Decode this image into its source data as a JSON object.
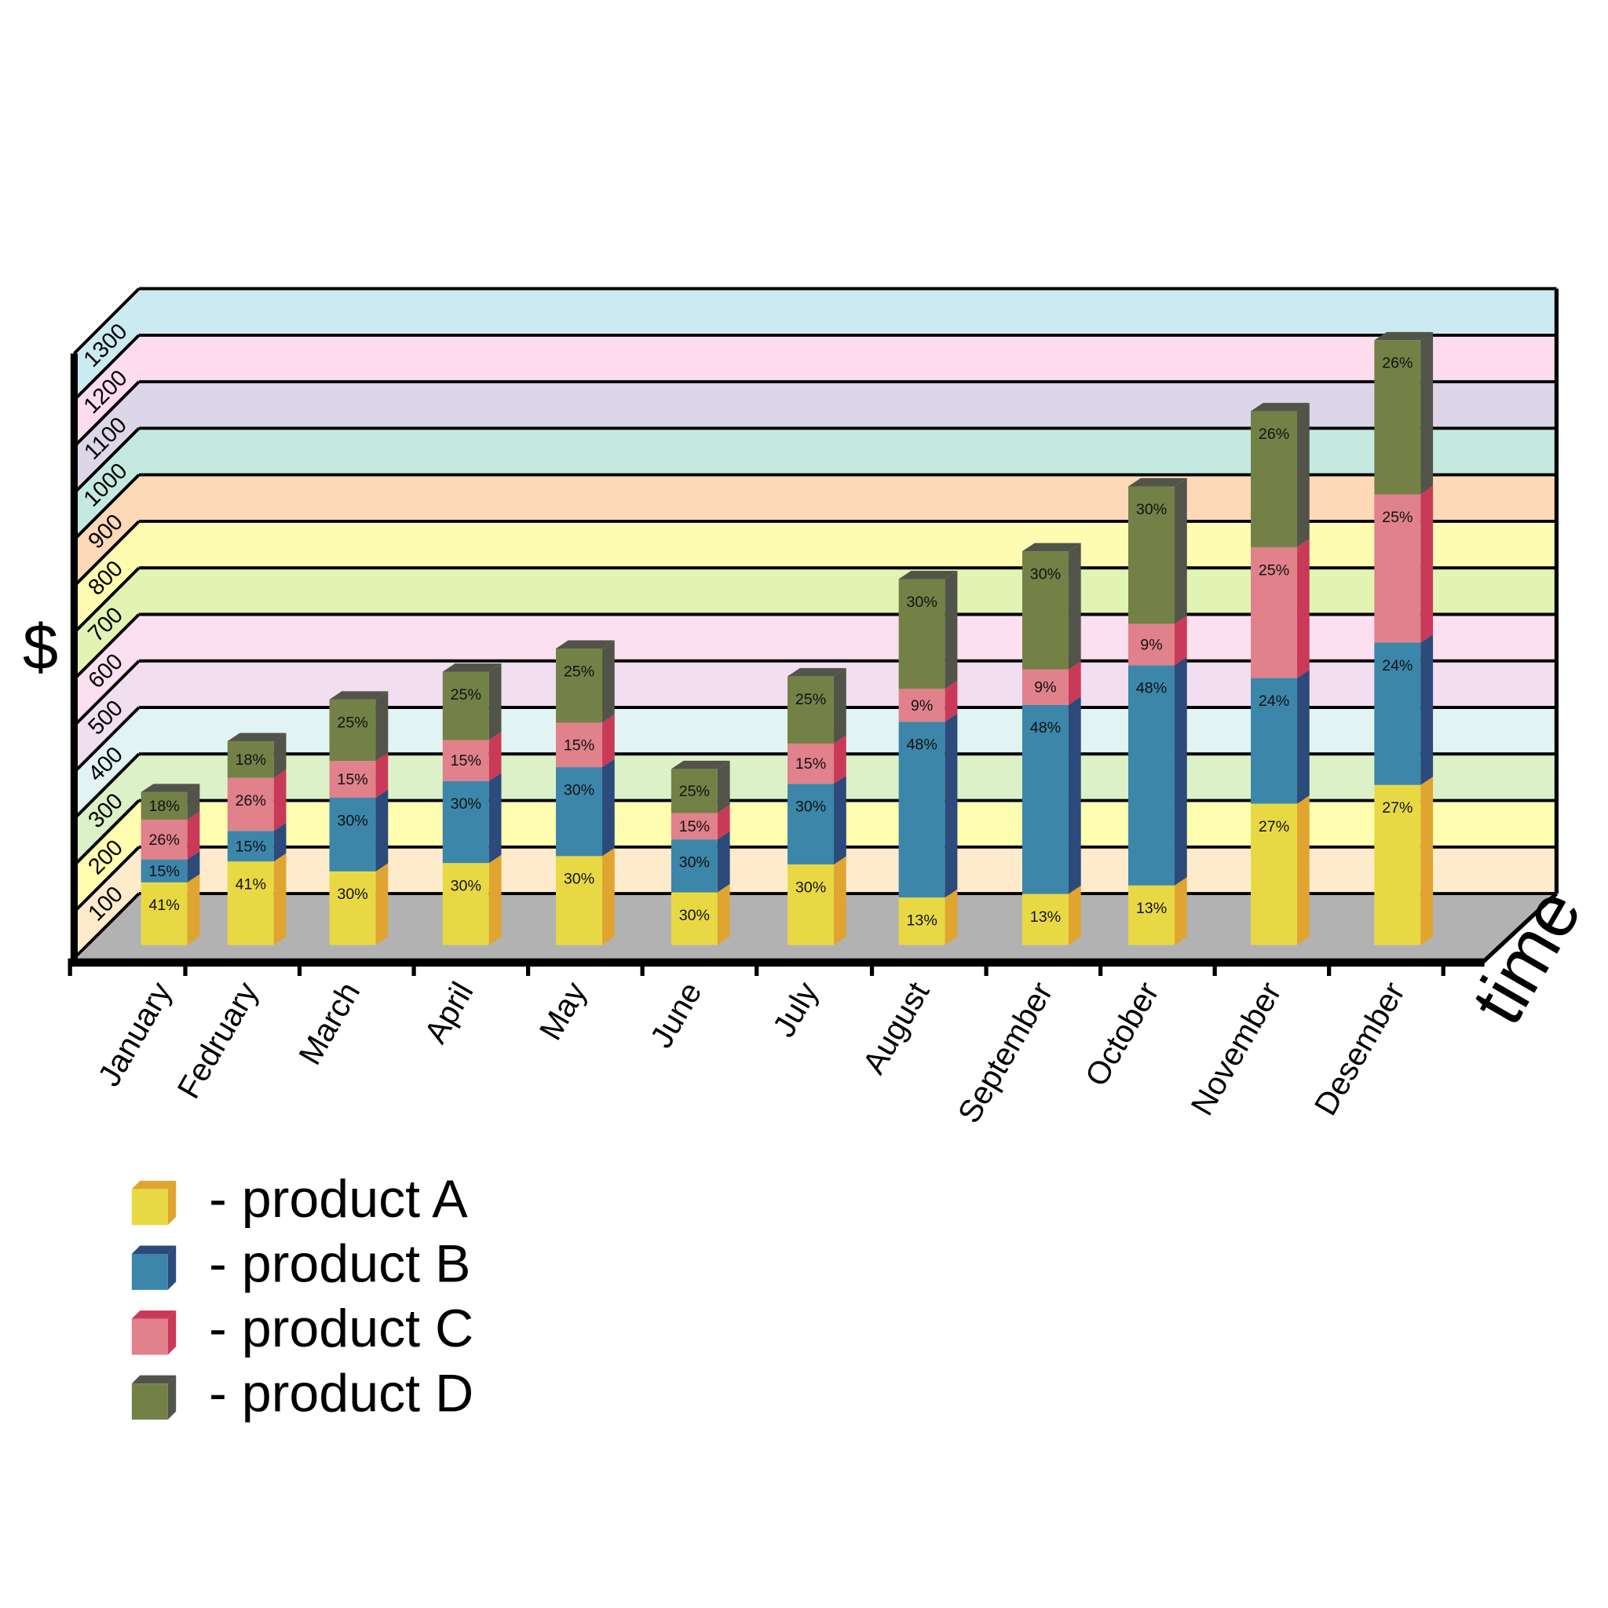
{
  "chart_data": {
    "type": "bar",
    "stacked": true,
    "three_d": true,
    "title": "",
    "xlabel": "time",
    "ylabel": "$",
    "ylim": [
      0,
      1300
    ],
    "yticks": [
      "100",
      "200",
      "300",
      "400",
      "500",
      "600",
      "700",
      "800",
      "900",
      "1000",
      "1100",
      "1200",
      "1300"
    ],
    "categories": [
      "January",
      "Fedruary",
      "March",
      "April",
      "May",
      "June",
      "July",
      "August",
      "September",
      "October",
      "November",
      "Desember"
    ],
    "totals": [
      330,
      440,
      530,
      590,
      640,
      380,
      580,
      790,
      850,
      990,
      1130,
      1280
    ],
    "series": [
      {
        "name": "- product A",
        "percents": [
          41,
          41,
          30,
          30,
          30,
          30,
          30,
          13,
          13,
          13,
          27,
          27
        ]
      },
      {
        "name": "- product B",
        "percents": [
          15,
          15,
          30,
          30,
          30,
          30,
          30,
          48,
          48,
          48,
          24,
          24
        ]
      },
      {
        "name": "- product C",
        "percents": [
          26,
          26,
          15,
          15,
          15,
          15,
          15,
          9,
          9,
          9,
          25,
          25
        ]
      },
      {
        "name": "- product D",
        "percents": [
          18,
          18,
          25,
          25,
          25,
          25,
          25,
          30,
          30,
          30,
          26,
          26
        ]
      }
    ],
    "legend_position": "bottom-left"
  },
  "colors": {
    "series_front": [
      "#e8d944",
      "#3c86aa",
      "#e0818b",
      "#738147"
    ],
    "series_side": [
      "#e0a530",
      "#2c4a7a",
      "#c93a58",
      "#525449"
    ],
    "floor": "#b2b2b2",
    "bands": [
      "#fdebcc",
      "#fefdb0",
      "#dcf1c8",
      "#e1f4f3",
      "#f1def0",
      "#fde0ef",
      "#e1f4b3",
      "#fefcb0",
      "#fed9b8",
      "#c4eadf",
      "#ddd6e9",
      "#fddcee",
      "#cbeaf1"
    ]
  }
}
